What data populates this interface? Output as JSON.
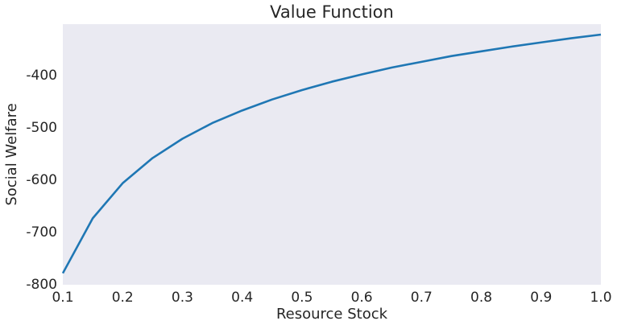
{
  "chart_data": {
    "type": "line",
    "title": "Value Function",
    "x_label": "Resource Stock",
    "y_label": "Social Welfare",
    "x": [
      0.1,
      0.15,
      0.2,
      0.25,
      0.3,
      0.35,
      0.4,
      0.45,
      0.5,
      0.55,
      0.6,
      0.65,
      0.7,
      0.75,
      0.8,
      0.85,
      0.9,
      0.95,
      1.0
    ],
    "series": [
      {
        "name": "Value Function",
        "color": "#1f77b4",
        "values": [
          -778,
          -673,
          -606,
          -558,
          -521,
          -491,
          -467,
          -446,
          -428,
          -412,
          -398,
          -385,
          -374,
          -363,
          -354,
          -345,
          -337,
          -329,
          -322
        ]
      }
    ],
    "xlim": [
      0.1,
      1.0
    ],
    "ylim": [
      -800,
      -302
    ],
    "xticks": [
      0.1,
      0.2,
      0.3,
      0.4,
      0.5,
      0.6,
      0.7,
      0.8,
      0.9,
      {
        "value": 1.0,
        "label": "1.0"
      }
    ],
    "yticks": [
      -800,
      -700,
      -600,
      -500,
      -400
    ],
    "grid": false,
    "background": "#eaeaf2"
  }
}
